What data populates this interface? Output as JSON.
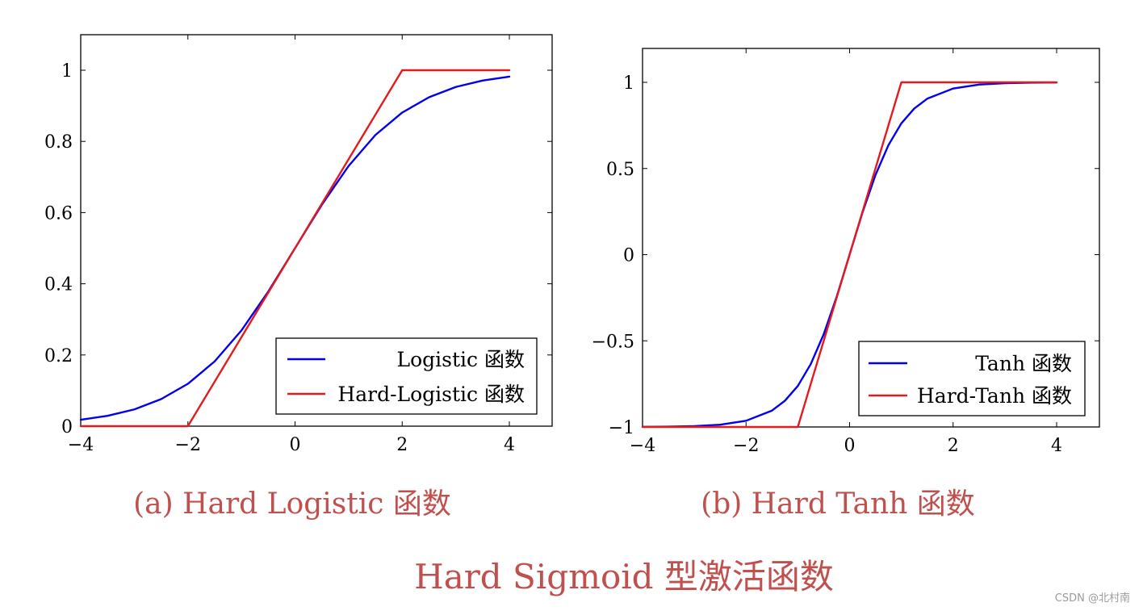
{
  "figure": {
    "main_title": "Hard Sigmoid 型激活函数",
    "watermark": "CSDN @北村南"
  },
  "chart_data": [
    {
      "type": "line",
      "caption": "(a) Hard Logistic 函数",
      "xlim": [
        -4,
        4
      ],
      "ylim": [
        0,
        1
      ],
      "x_ticks": [
        {
          "value": -4,
          "label": "−4"
        },
        {
          "value": -2,
          "label": "−2"
        },
        {
          "value": 0,
          "label": "0"
        },
        {
          "value": 2,
          "label": "2"
        },
        {
          "value": 4,
          "label": "4"
        }
      ],
      "y_ticks": [
        {
          "value": 0,
          "label": "0"
        },
        {
          "value": 0.2,
          "label": "0.2"
        },
        {
          "value": 0.4,
          "label": "0.4"
        },
        {
          "value": 0.6,
          "label": "0.6"
        },
        {
          "value": 0.8,
          "label": "0.8"
        },
        {
          "value": 1,
          "label": "1"
        }
      ],
      "grid": false,
      "legend_position": "bottom-right",
      "series": [
        {
          "name": "Logistic 函数",
          "color": "#0000ee",
          "x": [
            -4,
            -3.5,
            -3,
            -2.5,
            -2,
            -1.5,
            -1,
            -0.5,
            0,
            0.5,
            1,
            1.5,
            2,
            2.5,
            3,
            3.5,
            4
          ],
          "y": [
            0.018,
            0.029,
            0.047,
            0.076,
            0.119,
            0.182,
            0.269,
            0.378,
            0.5,
            0.622,
            0.731,
            0.818,
            0.881,
            0.924,
            0.953,
            0.971,
            0.982
          ]
        },
        {
          "name": "Hard-Logistic 函数",
          "color": "#e41a1c",
          "x": [
            -4,
            -2,
            2,
            4
          ],
          "y": [
            0,
            0,
            1,
            1
          ]
        }
      ]
    },
    {
      "type": "line",
      "caption": "(b) Hard Tanh 函数",
      "xlim": [
        -4,
        4
      ],
      "ylim": [
        -1,
        1
      ],
      "x_ticks": [
        {
          "value": -4,
          "label": "−4"
        },
        {
          "value": -2,
          "label": "−2"
        },
        {
          "value": 0,
          "label": "0"
        },
        {
          "value": 2,
          "label": "2"
        },
        {
          "value": 4,
          "label": "4"
        }
      ],
      "y_ticks": [
        {
          "value": -1,
          "label": "−1"
        },
        {
          "value": -0.5,
          "label": "−0.5"
        },
        {
          "value": 0,
          "label": "0"
        },
        {
          "value": 0.5,
          "label": "0.5"
        },
        {
          "value": 1,
          "label": "1"
        }
      ],
      "grid": false,
      "legend_position": "bottom-right",
      "series": [
        {
          "name": "Tanh 函数",
          "color": "#0000ee",
          "x": [
            -4,
            -3.5,
            -3,
            -2.5,
            -2,
            -1.5,
            -1.25,
            -1,
            -0.75,
            -0.5,
            -0.25,
            0,
            0.25,
            0.5,
            0.75,
            1,
            1.25,
            1.5,
            2,
            2.5,
            3,
            3.5,
            4
          ],
          "y": [
            -0.999,
            -0.998,
            -0.995,
            -0.987,
            -0.964,
            -0.905,
            -0.848,
            -0.762,
            -0.635,
            -0.462,
            -0.245,
            0,
            0.245,
            0.462,
            0.635,
            0.762,
            0.848,
            0.905,
            0.964,
            0.987,
            0.995,
            0.998,
            0.999
          ]
        },
        {
          "name": "Hard-Tanh 函数",
          "color": "#e41a1c",
          "x": [
            -4,
            -1,
            1,
            4
          ],
          "y": [
            -1,
            -1,
            1,
            1
          ]
        }
      ]
    }
  ]
}
